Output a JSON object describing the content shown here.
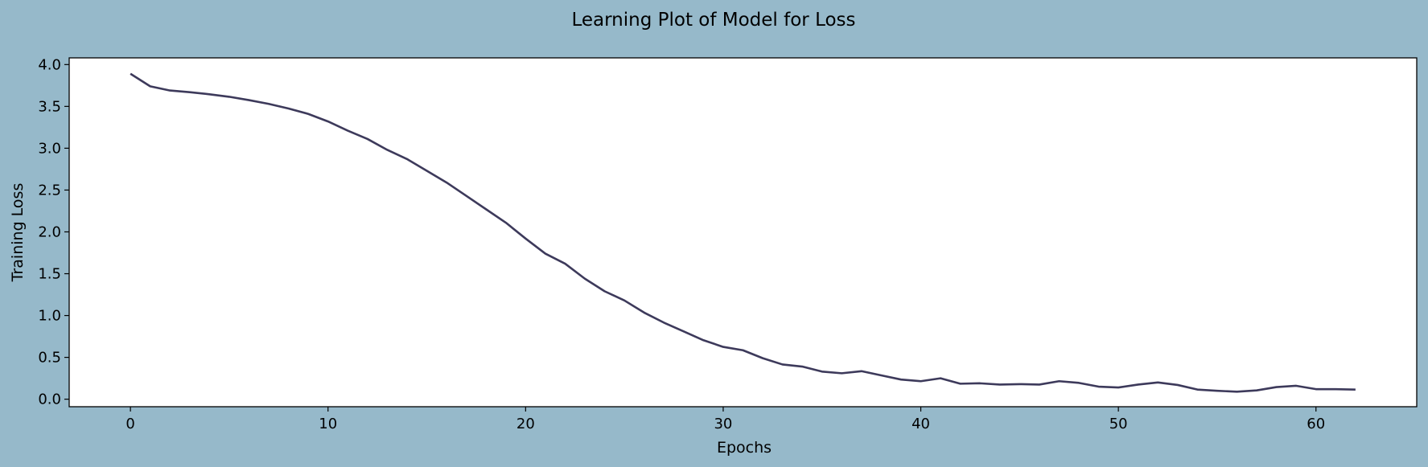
{
  "figure": {
    "background_color": "#96b9ca",
    "plot_background_color": "#ffffff",
    "line_color": "#3d3a5b"
  },
  "chart_data": {
    "type": "line",
    "title": "Learning Plot of Model for Loss",
    "xlabel": "Epochs",
    "ylabel": "Training Loss",
    "xlim": [
      -3.1,
      65.1
    ],
    "ylim": [
      -0.09,
      4.08
    ],
    "xticks": [
      0,
      10,
      20,
      30,
      40,
      50,
      60
    ],
    "xtick_labels": [
      "0",
      "10",
      "20",
      "30",
      "40",
      "50",
      "60"
    ],
    "yticks": [
      0.0,
      0.5,
      1.0,
      1.5,
      2.0,
      2.5,
      3.0,
      3.5,
      4.0
    ],
    "ytick_labels": [
      "0.0",
      "0.5",
      "1.0",
      "1.5",
      "2.0",
      "2.5",
      "3.0",
      "3.5",
      "4.0"
    ],
    "grid": false,
    "legend": "none",
    "series": [
      {
        "x": [
          0,
          1,
          2,
          3,
          4,
          5,
          6,
          7,
          8,
          9,
          10,
          11,
          12,
          13,
          14,
          15,
          16,
          17,
          18,
          19,
          20,
          21,
          22,
          23,
          24,
          25,
          26,
          27,
          28,
          29,
          30,
          31,
          32,
          33,
          34,
          35,
          36,
          37,
          38,
          39,
          40,
          41,
          42,
          43,
          44,
          45,
          46,
          47,
          48,
          49,
          50,
          51,
          52,
          53,
          54,
          55,
          56,
          57,
          58,
          59,
          60,
          61,
          62
        ],
        "values": [
          3.89,
          3.74,
          3.69,
          3.67,
          3.645,
          3.615,
          3.575,
          3.53,
          3.475,
          3.41,
          3.32,
          3.21,
          3.11,
          2.98,
          2.87,
          2.73,
          2.59,
          2.43,
          2.27,
          2.11,
          1.92,
          1.74,
          1.62,
          1.44,
          1.29,
          1.18,
          1.035,
          0.915,
          0.81,
          0.705,
          0.625,
          0.585,
          0.49,
          0.415,
          0.39,
          0.33,
          0.31,
          0.335,
          0.285,
          0.235,
          0.215,
          0.25,
          0.185,
          0.19,
          0.175,
          0.18,
          0.175,
          0.215,
          0.195,
          0.15,
          0.14,
          0.175,
          0.2,
          0.17,
          0.115,
          0.1,
          0.09,
          0.105,
          0.145,
          0.16,
          0.12,
          0.12,
          0.115
        ]
      }
    ]
  }
}
